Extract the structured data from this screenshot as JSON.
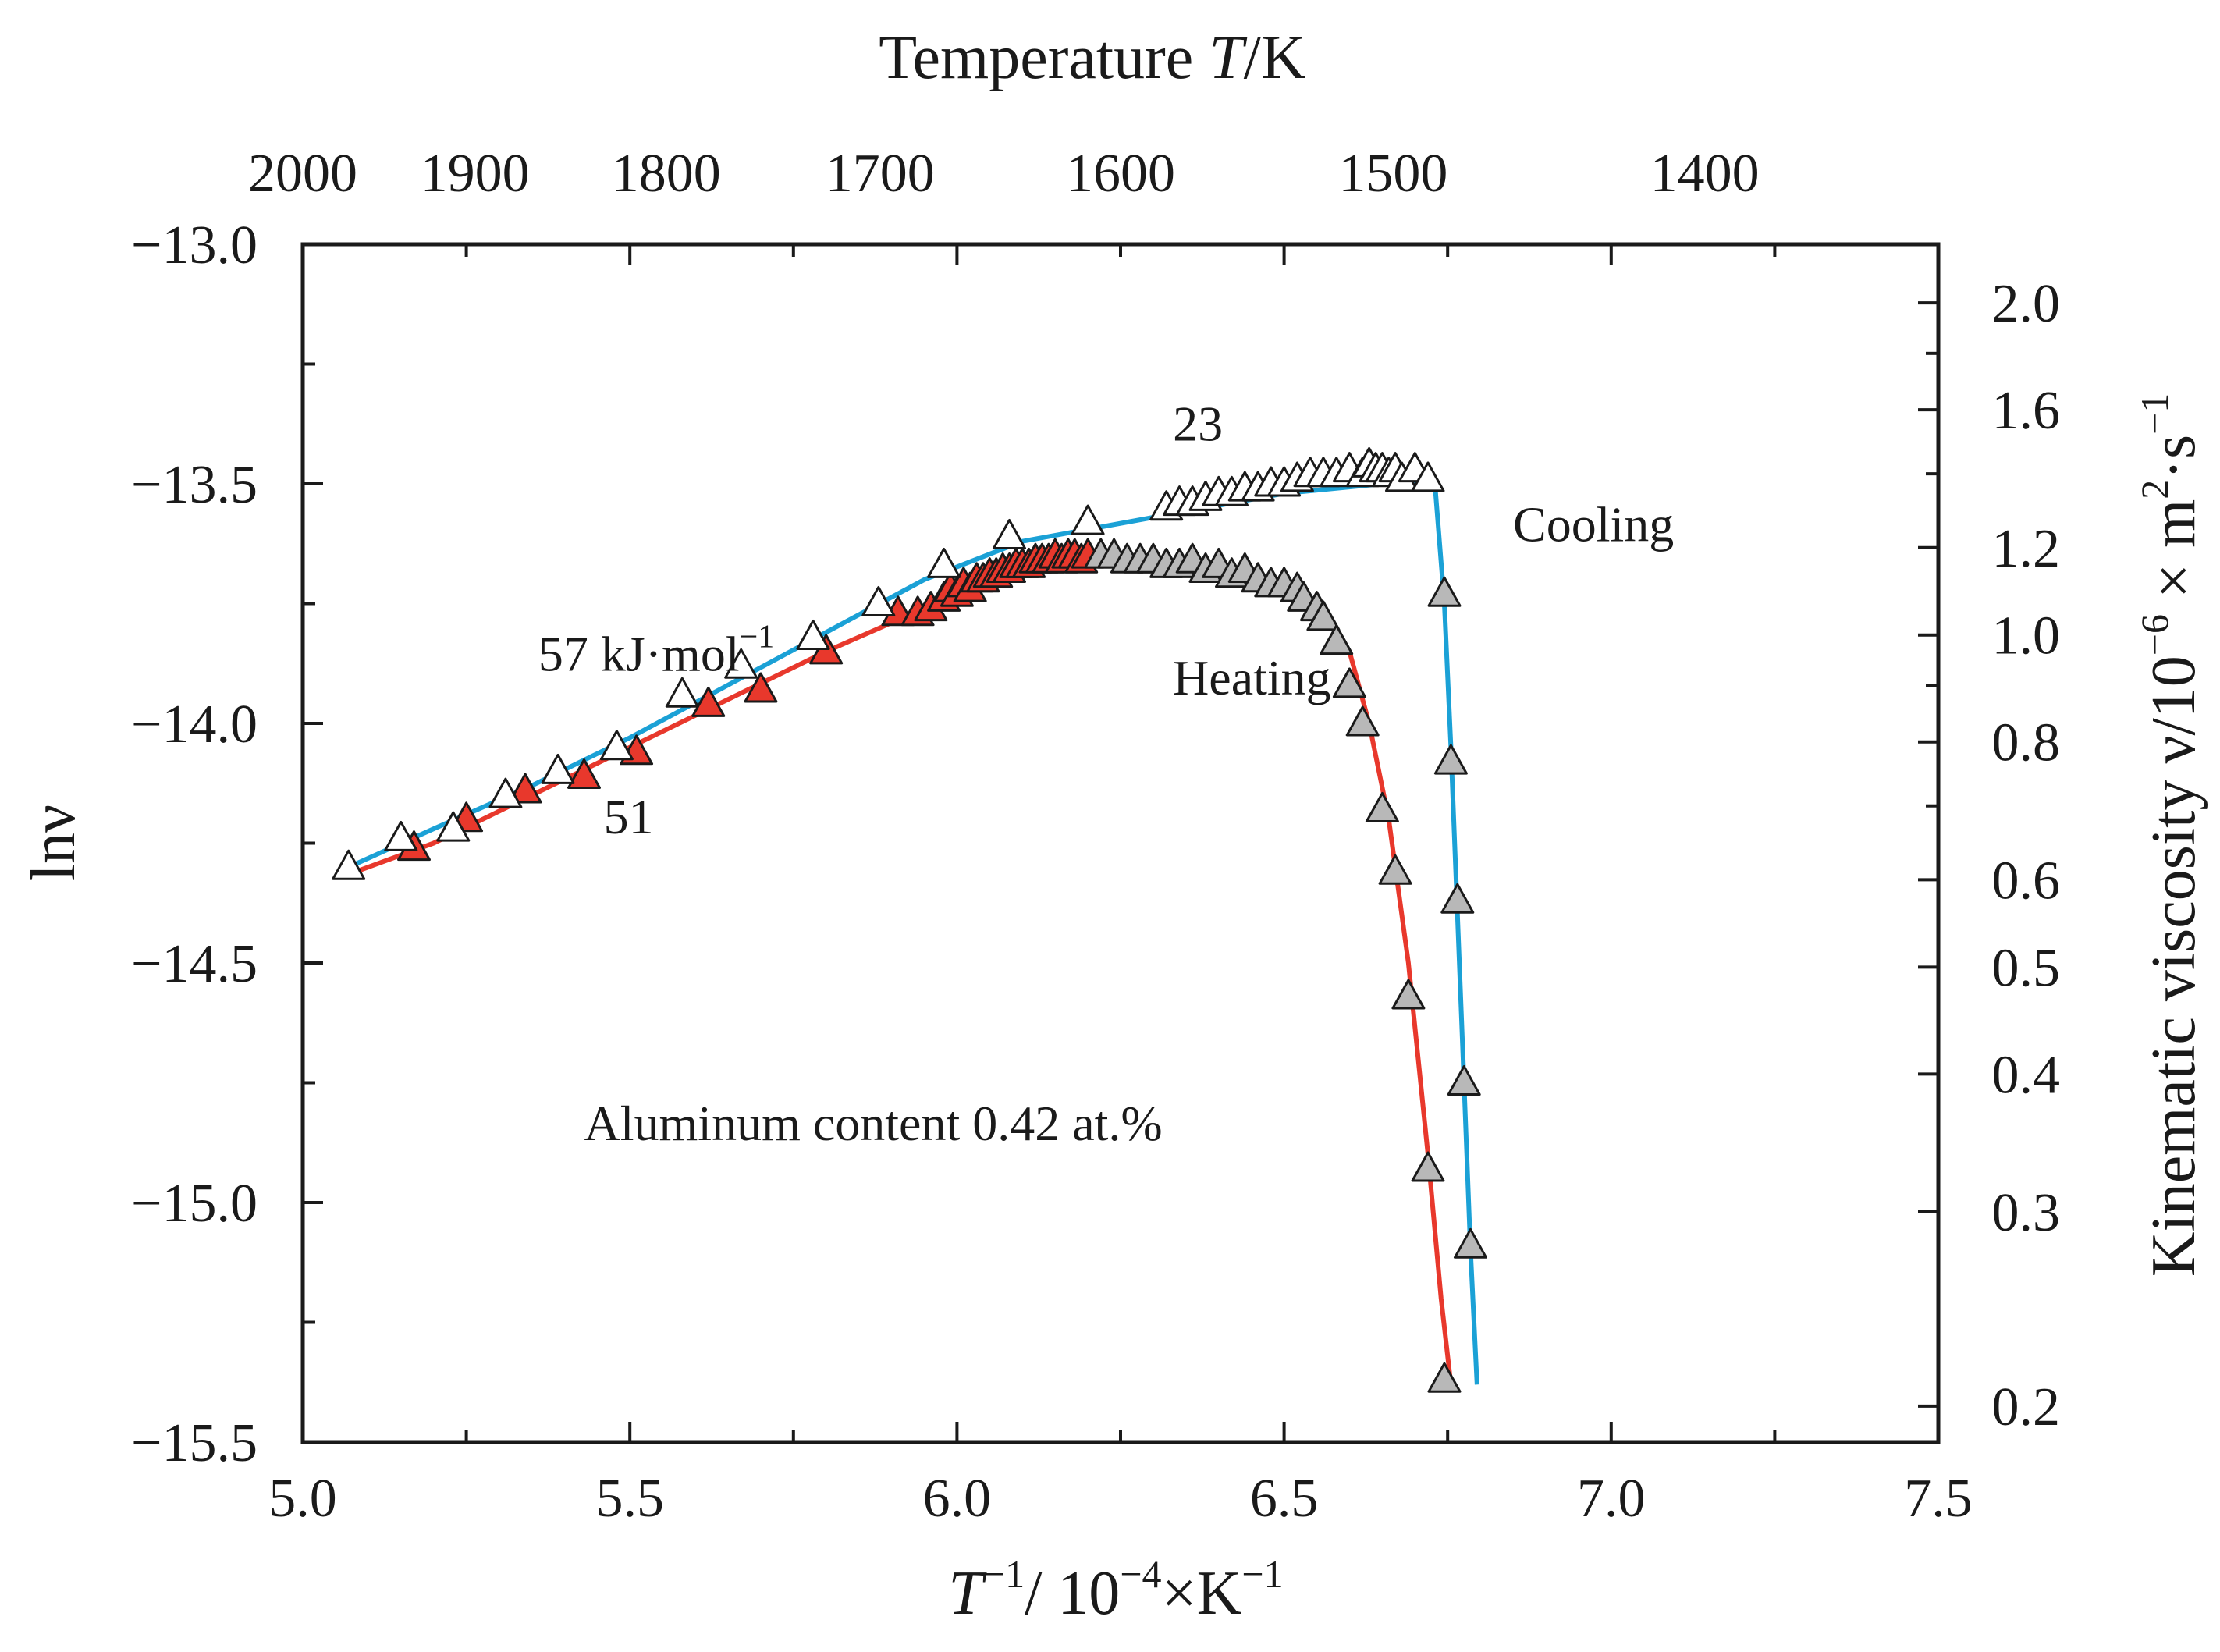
{
  "chart_data": {
    "type": "line",
    "title": "",
    "top_axis": {
      "label_prefix": "Temperature ",
      "label_var": "T",
      "label_suffix": "/K",
      "ticks": [
        {
          "value": 2000,
          "label": "2000"
        },
        {
          "value": 1900,
          "label": "1900"
        },
        {
          "value": 1800,
          "label": "1800"
        },
        {
          "value": 1700,
          "label": "1700"
        },
        {
          "value": 1600,
          "label": "1600"
        },
        {
          "value": 1500,
          "label": "1500"
        },
        {
          "value": 1400,
          "label": "1400"
        }
      ]
    },
    "x_axis": {
      "label_T": "T",
      "label_sup1": "−1",
      "label_mid": "/ 10",
      "label_sup2": "−4",
      "label_end": "×K",
      "label_sup3": "−1",
      "range": [
        5.0,
        7.5
      ],
      "ticks": [
        {
          "value": 5.0,
          "label": "5.0"
        },
        {
          "value": 5.5,
          "label": "5.5"
        },
        {
          "value": 6.0,
          "label": "6.0"
        },
        {
          "value": 6.5,
          "label": "6.5"
        },
        {
          "value": 7.0,
          "label": "7.0"
        },
        {
          "value": 7.5,
          "label": "7.5"
        }
      ]
    },
    "y_axis": {
      "label": "lnν",
      "range": [
        -15.5,
        -13.0
      ],
      "ticks": [
        {
          "value": -13.0,
          "label": "−13.0"
        },
        {
          "value": -13.5,
          "label": "−13.5"
        },
        {
          "value": -14.0,
          "label": "−14.0"
        },
        {
          "value": -14.5,
          "label": "−14.5"
        },
        {
          "value": -15.0,
          "label": "−15.0"
        },
        {
          "value": -15.5,
          "label": "−15.5"
        }
      ],
      "minor_ticks": [
        -13.25,
        -13.75,
        -14.25,
        -14.75,
        -15.25
      ]
    },
    "y2_axis": {
      "label_main": "Kinematic viscosity ν/10",
      "label_sup1": "−6",
      "label_mid": " × m",
      "label_sup2": "2",
      "label_mid2": "·s",
      "label_sup3": "−1",
      "ticks": [
        {
          "value": 2.0,
          "label": "2.0"
        },
        {
          "value": 1.6,
          "label": "1.6"
        },
        {
          "value": 1.2,
          "label": "1.2"
        },
        {
          "value": 1.0,
          "label": "1.0"
        },
        {
          "value": 0.8,
          "label": "0.8"
        },
        {
          "value": 0.6,
          "label": "0.6"
        },
        {
          "value": 0.5,
          "label": "0.5"
        },
        {
          "value": 0.4,
          "label": "0.4"
        },
        {
          "value": 0.3,
          "label": "0.3"
        },
        {
          "value": 0.2,
          "label": "0.2"
        }
      ],
      "minor_ticks": [
        1.8,
        1.4,
        0.9,
        0.7
      ]
    },
    "series": [
      {
        "name": "Cooling",
        "line_color": "#1ba1d6",
        "line": [
          [
            5.07,
            -14.3
          ],
          [
            5.2,
            -14.22
          ],
          [
            5.35,
            -14.13
          ],
          [
            5.5,
            -14.03
          ],
          [
            5.65,
            -13.92
          ],
          [
            5.8,
            -13.81
          ],
          [
            5.95,
            -13.7
          ],
          [
            6.1,
            -13.62
          ],
          [
            6.3,
            -13.57
          ],
          [
            6.5,
            -13.52
          ],
          [
            6.65,
            -13.5
          ],
          [
            6.73,
            -13.49
          ],
          [
            6.745,
            -13.75
          ],
          [
            6.755,
            -14.05
          ],
          [
            6.765,
            -14.4
          ],
          [
            6.775,
            -14.75
          ],
          [
            6.785,
            -15.1
          ],
          [
            6.795,
            -15.38
          ]
        ],
        "points_open": [
          [
            5.07,
            -14.3
          ],
          [
            5.15,
            -14.24
          ],
          [
            5.23,
            -14.22
          ],
          [
            5.31,
            -14.15
          ],
          [
            5.39,
            -14.1
          ],
          [
            5.48,
            -14.05
          ],
          [
            5.58,
            -13.94
          ],
          [
            5.67,
            -13.88
          ],
          [
            5.78,
            -13.82
          ],
          [
            5.88,
            -13.75
          ],
          [
            5.98,
            -13.67
          ],
          [
            6.08,
            -13.61
          ],
          [
            6.2,
            -13.58
          ],
          [
            6.32,
            -13.55
          ],
          [
            6.34,
            -13.54
          ],
          [
            6.36,
            -13.54
          ],
          [
            6.38,
            -13.53
          ],
          [
            6.4,
            -13.52
          ],
          [
            6.42,
            -13.52
          ],
          [
            6.44,
            -13.51
          ],
          [
            6.46,
            -13.51
          ],
          [
            6.48,
            -13.5
          ],
          [
            6.5,
            -13.5
          ],
          [
            6.52,
            -13.49
          ],
          [
            6.54,
            -13.48
          ],
          [
            6.56,
            -13.48
          ],
          [
            6.58,
            -13.48
          ],
          [
            6.6,
            -13.47
          ],
          [
            6.62,
            -13.48
          ],
          [
            6.63,
            -13.46
          ],
          [
            6.64,
            -13.47
          ],
          [
            6.65,
            -13.47
          ],
          [
            6.66,
            -13.48
          ],
          [
            6.67,
            -13.47
          ],
          [
            6.68,
            -13.49
          ],
          [
            6.7,
            -13.47
          ],
          [
            6.72,
            -13.49
          ]
        ],
        "points_gray": [
          [
            6.745,
            -13.73
          ],
          [
            6.755,
            -14.08
          ],
          [
            6.765,
            -14.37
          ],
          [
            6.775,
            -14.75
          ],
          [
            6.785,
            -15.09
          ]
        ]
      },
      {
        "name": "Heating",
        "line_color": "#e8382c",
        "line": [
          [
            5.08,
            -14.31
          ],
          [
            5.2,
            -14.25
          ],
          [
            5.35,
            -14.15
          ],
          [
            5.5,
            -14.05
          ],
          [
            5.65,
            -13.95
          ],
          [
            5.8,
            -13.85
          ],
          [
            5.95,
            -13.76
          ],
          [
            6.1,
            -13.68
          ],
          [
            6.2,
            -13.66
          ],
          [
            6.4,
            -13.68
          ],
          [
            6.55,
            -13.75
          ],
          [
            6.6,
            -13.85
          ],
          [
            6.63,
            -14.0
          ],
          [
            6.66,
            -14.2
          ],
          [
            6.69,
            -14.5
          ],
          [
            6.72,
            -14.9
          ],
          [
            6.74,
            -15.2
          ],
          [
            6.755,
            -15.38
          ]
        ],
        "points_red": [
          [
            5.17,
            -14.26
          ],
          [
            5.25,
            -14.2
          ],
          [
            5.34,
            -14.14
          ],
          [
            5.43,
            -14.11
          ],
          [
            5.51,
            -14.06
          ],
          [
            5.62,
            -13.96
          ],
          [
            5.7,
            -13.93
          ],
          [
            5.8,
            -13.85
          ],
          [
            5.91,
            -13.77
          ],
          [
            5.94,
            -13.77
          ],
          [
            5.96,
            -13.76
          ],
          [
            5.98,
            -13.74
          ],
          [
            5.99,
            -13.72
          ],
          [
            6.0,
            -13.73
          ],
          [
            6.01,
            -13.71
          ],
          [
            6.02,
            -13.72
          ],
          [
            6.03,
            -13.7
          ],
          [
            6.04,
            -13.7
          ],
          [
            6.05,
            -13.69
          ],
          [
            6.06,
            -13.69
          ],
          [
            6.07,
            -13.68
          ],
          [
            6.08,
            -13.68
          ],
          [
            6.09,
            -13.67
          ],
          [
            6.1,
            -13.67
          ],
          [
            6.11,
            -13.67
          ],
          [
            6.12,
            -13.66
          ],
          [
            6.13,
            -13.66
          ],
          [
            6.14,
            -13.66
          ],
          [
            6.15,
            -13.65
          ],
          [
            6.16,
            -13.66
          ],
          [
            6.17,
            -13.65
          ],
          [
            6.18,
            -13.65
          ],
          [
            6.19,
            -13.66
          ],
          [
            6.2,
            -13.65
          ]
        ],
        "points_gray": [
          [
            6.22,
            -13.65
          ],
          [
            6.24,
            -13.65
          ],
          [
            6.26,
            -13.66
          ],
          [
            6.28,
            -13.66
          ],
          [
            6.3,
            -13.66
          ],
          [
            6.32,
            -13.67
          ],
          [
            6.34,
            -13.67
          ],
          [
            6.36,
            -13.66
          ],
          [
            6.38,
            -13.68
          ],
          [
            6.4,
            -13.67
          ],
          [
            6.42,
            -13.69
          ],
          [
            6.44,
            -13.68
          ],
          [
            6.46,
            -13.7
          ],
          [
            6.48,
            -13.71
          ],
          [
            6.5,
            -13.71
          ],
          [
            6.52,
            -13.72
          ],
          [
            6.53,
            -13.74
          ],
          [
            6.55,
            -13.76
          ],
          [
            6.56,
            -13.78
          ],
          [
            6.58,
            -13.83
          ],
          [
            6.6,
            -13.92
          ],
          [
            6.62,
            -14.0
          ],
          [
            6.65,
            -14.18
          ],
          [
            6.67,
            -14.31
          ],
          [
            6.69,
            -14.57
          ],
          [
            6.72,
            -14.93
          ],
          [
            6.745,
            -15.37
          ]
        ]
      }
    ],
    "annotations": [
      {
        "text": "57 kJ·mol",
        "sup": "−1",
        "x": 5.36,
        "y": -13.89
      },
      {
        "text": "51",
        "x": 5.46,
        "y": -14.23
      },
      {
        "text": "23",
        "x": 6.33,
        "y": -13.41
      },
      {
        "text": "Cooling",
        "x": 6.85,
        "y": -13.62
      },
      {
        "text": "Heating",
        "x": 6.33,
        "y": -13.94
      },
      {
        "text": "Aluminum content 0.42 at.%",
        "x": 5.43,
        "y": -14.87
      }
    ]
  }
}
